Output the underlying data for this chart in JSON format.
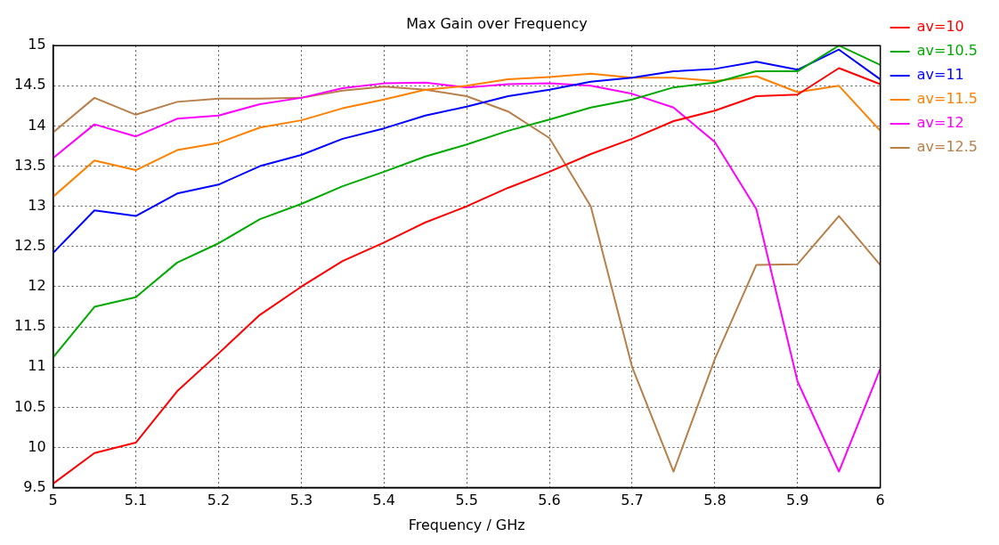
{
  "chart_data": {
    "type": "line",
    "title": "Max Gain over Frequency",
    "xlabel": "Frequency / GHz",
    "x": [
      5,
      5.05,
      5.1,
      5.15,
      5.2,
      5.25,
      5.3,
      5.35,
      5.4,
      5.45,
      5.5,
      5.55,
      5.6,
      5.65,
      5.7,
      5.75,
      5.8,
      5.85,
      5.9,
      5.95,
      6
    ],
    "series": [
      {
        "name": "av=10",
        "color": "#ff0000",
        "values": [
          9.55,
          9.93,
          10.06,
          10.7,
          11.17,
          11.65,
          12.0,
          12.32,
          12.55,
          12.8,
          13.0,
          13.23,
          13.43,
          13.65,
          13.84,
          14.06,
          14.19,
          14.37,
          14.39,
          14.72,
          14.52
        ]
      },
      {
        "name": "av=10.5",
        "color": "#00aa00",
        "values": [
          11.12,
          11.75,
          11.87,
          12.3,
          12.54,
          12.84,
          13.03,
          13.25,
          13.43,
          13.62,
          13.77,
          13.94,
          14.08,
          14.23,
          14.33,
          14.48,
          14.54,
          14.68,
          14.68,
          15.0,
          14.76
        ]
      },
      {
        "name": "av=11",
        "color": "#0000ff",
        "values": [
          12.42,
          12.95,
          12.88,
          13.16,
          13.27,
          13.5,
          13.64,
          13.84,
          13.97,
          14.13,
          14.24,
          14.37,
          14.45,
          14.55,
          14.6,
          14.68,
          14.71,
          14.8,
          14.7,
          14.95,
          14.58
        ]
      },
      {
        "name": "av=11.5",
        "color": "#ff8000",
        "values": [
          13.12,
          13.57,
          13.45,
          13.7,
          13.79,
          13.98,
          14.07,
          14.22,
          14.33,
          14.45,
          14.5,
          14.58,
          14.61,
          14.65,
          14.6,
          14.6,
          14.56,
          14.62,
          14.42,
          14.5,
          13.94
        ]
      },
      {
        "name": "av=12",
        "color": "#ff00ff",
        "values": [
          13.6,
          14.02,
          13.87,
          14.09,
          14.13,
          14.27,
          14.35,
          14.47,
          14.53,
          14.54,
          14.48,
          14.52,
          14.53,
          14.5,
          14.4,
          14.23,
          13.8,
          12.97,
          10.82,
          9.7,
          10.98
        ]
      },
      {
        "name": "av=12.5",
        "color": "#b87f48",
        "values": [
          13.92,
          14.35,
          14.14,
          14.3,
          14.34,
          14.34,
          14.35,
          14.44,
          14.49,
          14.45,
          14.37,
          14.18,
          13.85,
          13.0,
          11.0,
          9.7,
          11.1,
          12.27,
          12.28,
          12.88,
          12.27
        ]
      }
    ],
    "xlim": [
      5,
      6
    ],
    "xticks": [
      5,
      5.1,
      5.2,
      5.3,
      5.4,
      5.5,
      5.6,
      5.7,
      5.8,
      5.9,
      6
    ],
    "ylim": [
      9.5,
      15
    ],
    "yticks": [
      9.5,
      10,
      10.5,
      11,
      11.5,
      12,
      12.5,
      13,
      13.5,
      14,
      14.5,
      15
    ],
    "grid": true,
    "legend": "right",
    "marker": "none",
    "line_style": "solid"
  }
}
